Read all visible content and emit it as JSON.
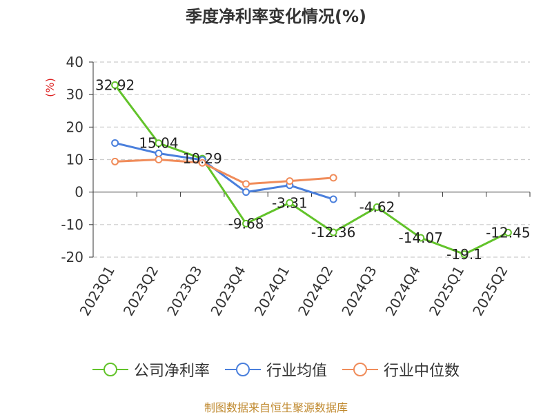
{
  "title": "季度净利率变化情况(%)",
  "source": "制图数据来自恒生聚源数据库",
  "chart_data": {
    "type": "line",
    "title": "季度净利率变化情况(%)",
    "ylabel": "(%)",
    "categories": [
      "2023Q1",
      "2023Q2",
      "2023Q3",
      "2023Q4",
      "2024Q1",
      "2024Q2",
      "2024Q3",
      "2024Q4",
      "2025Q1",
      "2025Q2"
    ],
    "ylim": [
      -20,
      40
    ],
    "yticks": [
      40,
      30,
      20,
      10,
      0,
      -10,
      -20
    ],
    "grid": true,
    "legend_position": "bottom",
    "series": [
      {
        "name": "公司净利率",
        "color": "#62c32a",
        "values": [
          32.92,
          15.04,
          10.29,
          -9.68,
          -3.31,
          -12.36,
          -4.62,
          -14.07,
          -19.1,
          -12.45
        ],
        "labels": [
          "32.92",
          "15.04",
          "10.29",
          "-9.68",
          "-3.31",
          "-12.36",
          "-4.62",
          "-14.07",
          "-19.1",
          "-12.45"
        ]
      },
      {
        "name": "行业均值",
        "color": "#4a7fdc",
        "values": [
          15.1,
          11.9,
          9.9,
          0.0,
          2.1,
          -2.2,
          null,
          null,
          null,
          null
        ]
      },
      {
        "name": "行业中位数",
        "color": "#f08c5a",
        "values": [
          9.4,
          10.0,
          9.0,
          2.5,
          3.4,
          4.4,
          null,
          null,
          null,
          null
        ]
      }
    ]
  }
}
